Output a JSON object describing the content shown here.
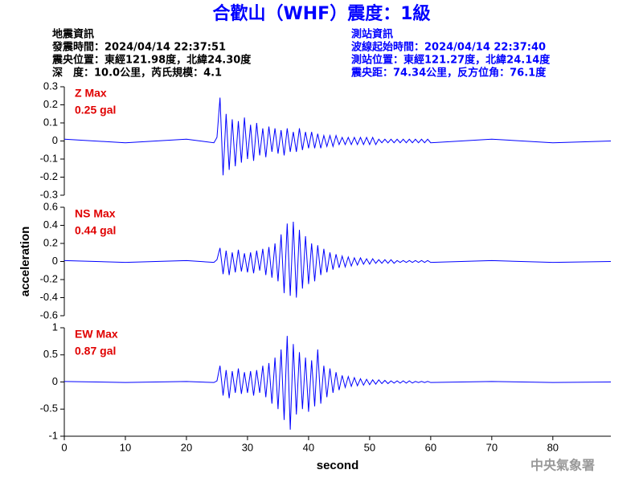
{
  "header": {
    "title": "合歡山（WHF）震度：1級",
    "left": [
      "地震資訊",
      "發震時間：2024/04/14 22:37:51",
      "震央位置：東經121.98度，北緯24.30度",
      "深　度：10.0公里，芮氏規模：4.1"
    ],
    "right": [
      "測站資訊",
      "波線起始時間：2024/04/14 22:37:40",
      "測站位置：東經121.27度，北緯24.14度",
      "震央距：74.34公里，反方位角：76.1度"
    ]
  },
  "footer": "中央氣象署",
  "chart_data": [
    {
      "type": "line",
      "annotations": [
        "Z Max",
        "0.25 gal"
      ],
      "color": "#0000ff",
      "xlim": [
        0,
        89.5
      ],
      "ylim": [
        -0.3,
        0.3
      ],
      "yticks": [
        0.3,
        0.2,
        0.1,
        0,
        -0.1,
        -0.2,
        -0.3
      ],
      "x": [
        0,
        10,
        20,
        24.5,
        25,
        25.5,
        26,
        26.5,
        27,
        27.5,
        28,
        28.5,
        29,
        29.5,
        30,
        30.5,
        31,
        31.5,
        32,
        32.5,
        33,
        33.5,
        34,
        34.5,
        35,
        35.5,
        36,
        36.5,
        37,
        37.5,
        38,
        38.5,
        39,
        39.5,
        40,
        40.5,
        41,
        41.5,
        42,
        42.5,
        43,
        43.5,
        44,
        44.5,
        45,
        45.5,
        46,
        46.5,
        47,
        47.5,
        48,
        48.5,
        49,
        49.5,
        50,
        50.5,
        51,
        51.5,
        52,
        52.5,
        53,
        53.5,
        54,
        54.5,
        55,
        55.5,
        56,
        56.5,
        57,
        57.5,
        58,
        58.5,
        59,
        59.5,
        60,
        70,
        80,
        89.5
      ],
      "values": [
        0.01,
        -0.01,
        0.01,
        -0.01,
        0.02,
        0.24,
        -0.19,
        0.15,
        -0.16,
        0.12,
        -0.14,
        0.11,
        -0.12,
        0.13,
        -0.1,
        0.09,
        -0.11,
        0.1,
        -0.08,
        0.07,
        -0.09,
        0.08,
        -0.06,
        0.07,
        -0.07,
        0.06,
        -0.08,
        0.07,
        -0.06,
        0.05,
        -0.06,
        0.07,
        -0.05,
        0.05,
        -0.04,
        0.05,
        -0.04,
        0.04,
        -0.04,
        0.03,
        -0.03,
        0.03,
        -0.03,
        0.03,
        -0.02,
        0.02,
        -0.02,
        0.02,
        -0.02,
        0.02,
        -0.02,
        0.02,
        -0.02,
        0.02,
        -0.02,
        0.02,
        -0.02,
        0.01,
        -0.01,
        0.01,
        -0.01,
        0.01,
        -0.01,
        0.01,
        -0.01,
        0.01,
        -0.01,
        0.01,
        -0.01,
        0.01,
        -0.01,
        0.01,
        -0.01,
        0.01,
        -0.01,
        0.01,
        -0.01,
        0
      ]
    },
    {
      "type": "line",
      "annotations": [
        "NS Max",
        "0.44 gal"
      ],
      "color": "#0000ff",
      "ylabel": "acceleration",
      "xlim": [
        0,
        89.5
      ],
      "ylim": [
        -0.6,
        0.6
      ],
      "yticks": [
        0.6,
        0.4,
        0.2,
        0,
        -0.2,
        -0.4,
        -0.6
      ],
      "x": [
        0,
        10,
        20,
        24.5,
        25,
        25.5,
        26,
        26.5,
        27,
        27.5,
        28,
        28.5,
        29,
        29.5,
        30,
        30.5,
        31,
        31.5,
        32,
        32.5,
        33,
        33.5,
        34,
        34.5,
        35,
        35.5,
        36,
        36.5,
        37,
        37.5,
        38,
        38.5,
        39,
        39.5,
        40,
        40.5,
        41,
        41.5,
        42,
        42.5,
        43,
        43.5,
        44,
        44.5,
        45,
        45.5,
        46,
        46.5,
        47,
        47.5,
        48,
        48.5,
        49,
        49.5,
        50,
        50.5,
        51,
        51.5,
        52,
        52.5,
        53,
        53.5,
        54,
        54.5,
        55,
        55.5,
        56,
        56.5,
        57,
        57.5,
        58,
        58.5,
        59,
        59.5,
        60,
        70,
        80,
        89.5
      ],
      "values": [
        0.01,
        -0.01,
        0.01,
        -0.01,
        0.02,
        0.15,
        -0.14,
        0.12,
        -0.15,
        0.1,
        -0.12,
        0.13,
        -0.11,
        0.09,
        -0.12,
        0.1,
        -0.13,
        0.12,
        -0.1,
        0.14,
        -0.15,
        0.16,
        -0.18,
        0.2,
        -0.22,
        0.3,
        -0.35,
        0.42,
        -0.38,
        0.44,
        -0.4,
        0.35,
        -0.3,
        0.28,
        -0.25,
        0.2,
        -0.22,
        0.18,
        -0.15,
        0.14,
        -0.12,
        0.1,
        -0.09,
        0.08,
        -0.07,
        0.06,
        -0.06,
        0.05,
        -0.05,
        0.04,
        -0.04,
        0.04,
        -0.03,
        0.03,
        -0.03,
        0.03,
        -0.02,
        0.02,
        -0.02,
        0.02,
        -0.02,
        0.02,
        -0.02,
        0.01,
        -0.01,
        0.01,
        -0.01,
        0.01,
        -0.01,
        0.01,
        -0.01,
        0.01,
        -0.01,
        0.01,
        -0.01,
        0.01,
        -0.01,
        0
      ]
    },
    {
      "type": "line",
      "annotations": [
        "EW Max",
        "0.87 gal"
      ],
      "color": "#0000ff",
      "xlabel": "second",
      "xlim": [
        0,
        89.5
      ],
      "xticks": [
        0,
        10,
        20,
        30,
        40,
        50,
        60,
        70,
        80
      ],
      "ylim": [
        -1,
        1
      ],
      "yticks": [
        1,
        0.5,
        0,
        -0.5,
        -1
      ],
      "x": [
        0,
        10,
        20,
        24.5,
        25,
        25.5,
        26,
        26.5,
        27,
        27.5,
        28,
        28.5,
        29,
        29.5,
        30,
        30.5,
        31,
        31.5,
        32,
        32.5,
        33,
        33.5,
        34,
        34.5,
        35,
        35.5,
        36,
        36.5,
        37,
        37.5,
        38,
        38.5,
        39,
        39.5,
        40,
        40.5,
        41,
        41.5,
        42,
        42.5,
        43,
        43.5,
        44,
        44.5,
        45,
        45.5,
        46,
        46.5,
        47,
        47.5,
        48,
        48.5,
        49,
        49.5,
        50,
        50.5,
        51,
        51.5,
        52,
        52.5,
        53,
        53.5,
        54,
        54.5,
        55,
        55.5,
        56,
        56.5,
        57,
        57.5,
        58,
        58.5,
        59,
        59.5,
        60,
        70,
        80,
        89.5
      ],
      "values": [
        0.01,
        -0.01,
        0.01,
        -0.01,
        0.02,
        0.3,
        -0.25,
        0.22,
        -0.3,
        0.2,
        -0.2,
        0.25,
        -0.22,
        0.18,
        -0.2,
        0.2,
        -0.25,
        0.22,
        -0.2,
        0.3,
        -0.28,
        0.35,
        -0.4,
        0.45,
        -0.5,
        0.6,
        -0.7,
        0.85,
        -0.88,
        0.7,
        -0.6,
        0.55,
        -0.5,
        0.45,
        -0.55,
        0.4,
        -0.45,
        0.6,
        -0.4,
        0.3,
        -0.28,
        0.25,
        -0.2,
        0.18,
        -0.15,
        0.12,
        -0.1,
        0.1,
        -0.08,
        0.08,
        -0.07,
        0.06,
        -0.06,
        0.05,
        -0.05,
        0.04,
        -0.04,
        0.04,
        -0.03,
        0.03,
        -0.03,
        0.02,
        -0.02,
        0.02,
        -0.02,
        0.02,
        -0.02,
        0.02,
        -0.02,
        0.01,
        -0.01,
        0.01,
        -0.01,
        0.01,
        -0.01,
        0.01,
        -0.01,
        0
      ]
    }
  ]
}
